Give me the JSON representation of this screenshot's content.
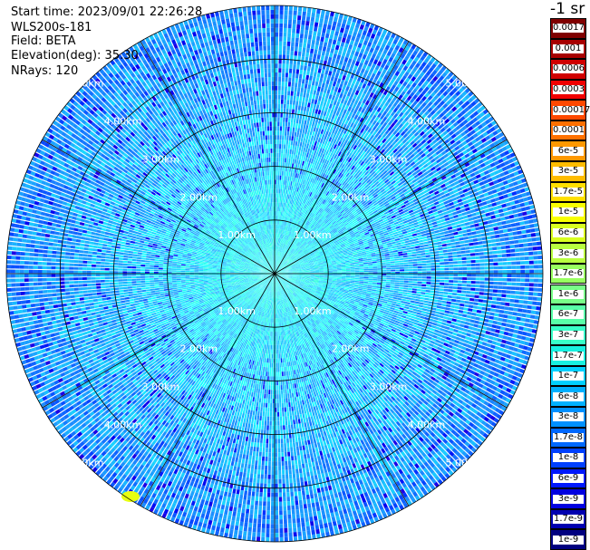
{
  "info": {
    "start_time": "Start time: 2023/09/01 22:26:28",
    "site": "WLS200s-181",
    "field": "Field: BETA",
    "elevation": "Elevation(deg): 35.30",
    "nrays": "NRays: 120"
  },
  "chart_data": {
    "type": "heatmap",
    "subtype": "polar-ppi",
    "field": "BETA",
    "units": "-1 sr",
    "nrays": 120,
    "elevation_deg": 35.3,
    "range_rings_km": [
      1,
      2,
      3,
      4,
      5
    ],
    "range_ring_labels": [
      "1.00km",
      "2.00km",
      "3.00km",
      "4.00km",
      "5.00km"
    ],
    "max_range_km": 5.0,
    "spoke_angles_deg": [
      0,
      30,
      60,
      90,
      120,
      150,
      180,
      210,
      240,
      270,
      300,
      330
    ],
    "colorbar": {
      "title": "-1 sr",
      "red_labels": [
        "0.0017",
        "0.001",
        "0.0006",
        "0.0003"
      ],
      "red_colors": [
        "#800000",
        "#a80000",
        "#d00000",
        "#f00000"
      ],
      "labels": [
        "0.00017",
        "0.0001",
        "6e-5",
        "3e-5",
        "1.7e-5",
        "1e-5",
        "6e-6",
        "3e-6",
        "1.7e-6",
        "1e-6",
        "6e-7",
        "3e-7",
        "1.7e-7",
        "1e-7",
        "6e-8",
        "3e-8",
        "1.7e-8",
        "1e-8",
        "6e-9",
        "3e-9",
        "1.7e-9",
        "1e-9"
      ],
      "colors": [
        "#ff4800",
        "#ff7000",
        "#ff9800",
        "#ffbc00",
        "#ffe000",
        "#f8ff00",
        "#d8ff20",
        "#b8ff40",
        "#98ff60",
        "#78ff88",
        "#58ffa8",
        "#38ffc8",
        "#18f0e0",
        "#00d0ff",
        "#00b0ff",
        "#0090ff",
        "#0068ff",
        "#0040ff",
        "#0018ff",
        "#0000e0",
        "#0000b0",
        "#000080"
      ]
    }
  }
}
